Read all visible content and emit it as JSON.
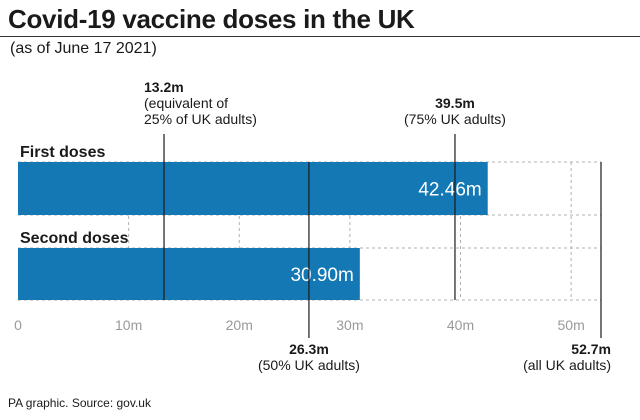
{
  "title": "Covid-19 vaccine doses in the UK",
  "subtitle": "(as of June 17 2021)",
  "source": "PA graphic. Source: gov.uk",
  "colors": {
    "bar": "#1478b4",
    "text": "#1a1a1a",
    "grid": "#b0b0b0",
    "axis": "#999999"
  },
  "chart_data": {
    "type": "bar",
    "orientation": "horizontal",
    "categories": [
      "First doses",
      "Second doses"
    ],
    "values": [
      42.46,
      30.9
    ],
    "value_labels": [
      "42.46m",
      "30.90m"
    ],
    "xlim": [
      0,
      52.7
    ],
    "x_ticks": [
      0,
      10,
      20,
      30,
      40,
      50
    ],
    "x_tick_labels": [
      "0",
      "10m",
      "20m",
      "30m",
      "40m",
      "50m"
    ],
    "grid": true,
    "reference_lines": [
      {
        "value": 13.2,
        "label_lines": [
          "13.2m",
          "(equivalent of",
          "25% of UK adults)"
        ],
        "position": "top"
      },
      {
        "value": 39.5,
        "label_lines": [
          "39.5m",
          "(75% UK adults)"
        ],
        "position": "top"
      },
      {
        "value": 26.3,
        "label_lines": [
          "26.3m",
          "(50% UK adults)"
        ],
        "position": "bottom"
      },
      {
        "value": 52.7,
        "label_lines": [
          "52.7m",
          "(all UK adults)"
        ],
        "position": "bottom"
      }
    ]
  }
}
